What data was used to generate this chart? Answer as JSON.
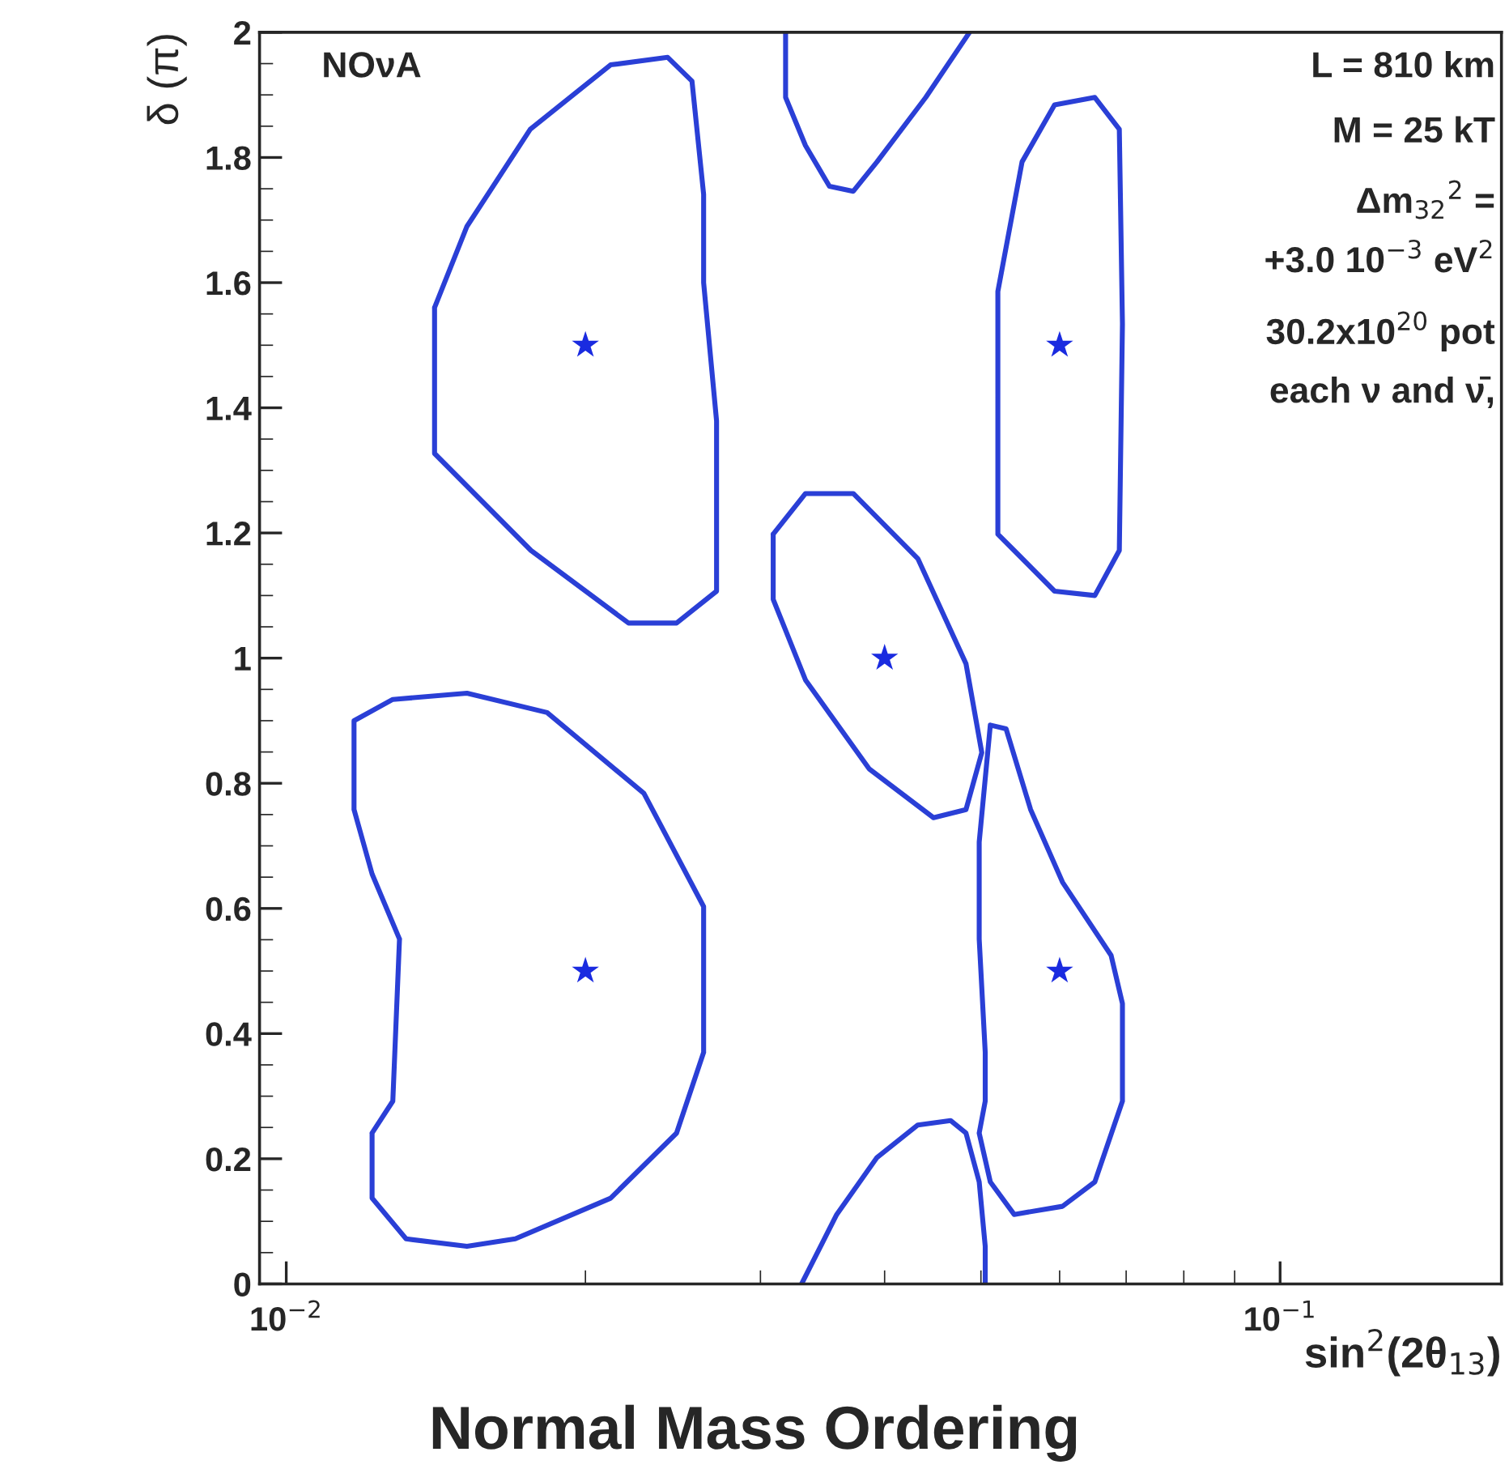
{
  "chart_data": {
    "type": "line",
    "xlabel": "sin$^{2}$(2θ$_{13}$)",
    "ylabel": "δ (π)",
    "annotations": [
      "NOνA",
      "L = 810 km",
      "M = 25 kT",
      "Δm$_{32}$$^{2}$ =",
      "  +3.0 10$^{−3}$ eV$^{2}$",
      "30.2x10$^{20}$ pot",
      " each ν and ν̄,",
      "Normal Mass Ordering"
    ],
    "log": "x",
    "xlim": [
      0.0094,
      0.167
    ],
    "xticks": [
      {
        "value": 0.01,
        "label": "10$^{−2}$"
      },
      {
        "value": 0.1,
        "label": "10$^{−1}$"
      }
    ],
    "ylim": [
      0,
      2
    ],
    "yticks": [
      0,
      0.2,
      0.4,
      0.6,
      0.8,
      1,
      1.2,
      1.4,
      1.6,
      1.8,
      2
    ],
    "grid": false,
    "legend": false,
    "line_style": "solid",
    "marker": "none",
    "series": [
      {
        "color": "#2a3fd6",
        "x": [
          0.0141,
          0.0141,
          0.01763,
          0.0221,
          0.0247,
          0.0271,
          0.0271,
          null,
          0.0141,
          0.0152,
          0.0176,
          0.0212,
          0.0242,
          0.0256,
          0.0263,
          0.0263,
          0.0271
        ],
        "values": [
          1.56,
          1.327,
          1.172,
          1.056,
          1.056,
          1.107,
          1.379,
          null,
          1.56,
          1.69,
          1.845,
          1.948,
          1.96,
          1.922,
          1.741,
          1.6,
          1.379
        ]
      },
      {
        "color": "#2a3fd6",
        "x": [
          0.0318,
          0.0318,
          0.0333,
          0.0352,
          0.0372,
          0.0393,
          0.044,
          0.0487
        ],
        "values": [
          2.0,
          1.896,
          1.819,
          1.754,
          1.746,
          1.793,
          1.896,
          2.0
        ]
      },
      {
        "color": "#2a3fd6",
        "x": [
          0.052,
          0.052,
          0.054,
          0.0593,
          0.0651,
          0.0689,
          0.0694,
          null,
          0.052,
          0.052,
          0.055,
          0.0593,
          0.0651,
          0.0689,
          0.0694
        ],
        "values": [
          1.418,
          1.198,
          1.172,
          1.107,
          1.1,
          1.172,
          1.534,
          null,
          1.418,
          1.586,
          1.793,
          1.884,
          1.896,
          1.845,
          1.534
        ]
      },
      {
        "color": "#2a3fd6",
        "x": [
          0.0309,
          0.0309,
          0.0333,
          0.0386,
          0.0448,
          0.0483,
          0.0501,
          null,
          0.0309,
          0.0333,
          0.0372,
          0.0432,
          0.0483,
          0.0501
        ],
        "values": [
          1.198,
          1.094,
          0.965,
          0.823,
          0.745,
          0.758,
          0.849,
          null,
          1.198,
          1.263,
          1.263,
          1.159,
          0.991,
          0.849
        ]
      },
      {
        "color": "#2a3fd6",
        "x": [
          0.0117,
          0.0117,
          0.0128,
          0.0152,
          0.0183,
          0.0229,
          0.0263,
          0.0263,
          null,
          0.0122,
          0.0122,
          0.0132,
          0.0152,
          0.017,
          0.0212,
          0.0247,
          0.0263,
          null,
          0.0117,
          0.0122,
          0.013,
          null,
          0.0122,
          0.0128,
          0.013
        ],
        "values": [
          0.758,
          0.9,
          0.934,
          0.944,
          0.913,
          0.784,
          0.603,
          0.37,
          null,
          0.241,
          0.137,
          0.072,
          0.06,
          0.072,
          0.137,
          0.241,
          0.37,
          null,
          0.758,
          0.655,
          0.551,
          null,
          0.241,
          0.292,
          0.551
        ]
      },
      {
        "color": "#2a3fd6",
        "x": [
          0.0498,
          0.0498,
          0.0511,
          0.053,
          0.0561,
          0.0604,
          0.0676,
          0.0694,
          0.0694,
          null,
          0.0498,
          0.0511,
          0.054,
          0.0604,
          0.0651,
          0.0694,
          null,
          0.0498,
          0.0505,
          0.0505,
          null,
          0.0498,
          0.0505
        ],
        "values": [
          0.551,
          0.706,
          0.893,
          0.887,
          0.758,
          0.642,
          0.525,
          0.448,
          0.292,
          null,
          0.241,
          0.163,
          0.111,
          0.124,
          0.163,
          0.292,
          null,
          0.241,
          0.292,
          0.37,
          null,
          0.551,
          0.37
        ]
      },
      {
        "color": "#2a3fd6",
        "x": [
          0.033,
          0.0358,
          0.0393,
          0.0432,
          0.0466,
          0.0483,
          0.0498,
          0.0505,
          0.0505
        ],
        "values": [
          0.0,
          0.111,
          0.202,
          0.254,
          0.261,
          0.241,
          0.163,
          0.06,
          0.0
        ]
      },
      {
        "type": "scatter",
        "marker": "star",
        "color": "#1a2be0",
        "x": [
          0.02,
          0.06,
          0.04,
          0.02,
          0.06
        ],
        "values": [
          1.5,
          1.5,
          1.0,
          0.5,
          0.5
        ]
      }
    ]
  }
}
